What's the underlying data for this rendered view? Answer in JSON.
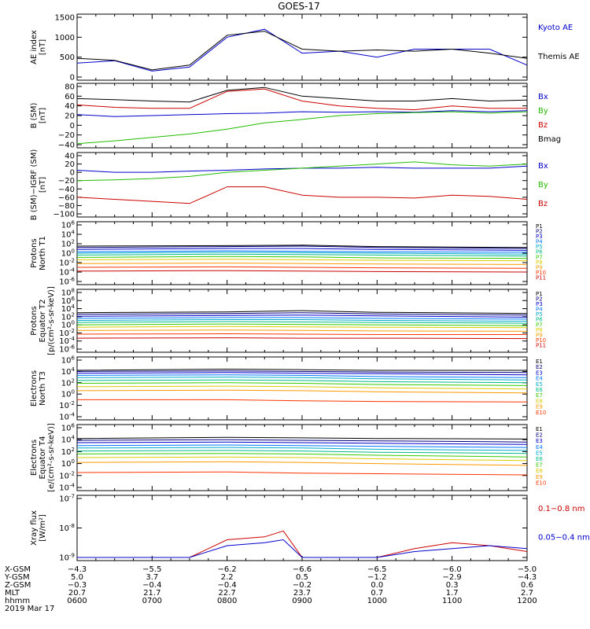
{
  "title": "GOES-17",
  "panels": [
    {
      "id": "ae",
      "ylabel_lines": [
        "AE index",
        "[nT]"
      ],
      "yticks": [
        "1500",
        "1000",
        "500",
        "0"
      ],
      "legend": [
        {
          "label": "Kyoto AE",
          "color": "#0000cc"
        },
        {
          "label": "Themis AE",
          "color": "#000000"
        }
      ]
    },
    {
      "id": "bsm",
      "ylabel_lines": [
        "B (SM)",
        "[nT]"
      ],
      "yticks": [
        "80",
        "60",
        "40",
        "20",
        "0",
        "−20",
        "−40"
      ],
      "legend": [
        {
          "label": "Bx",
          "color": "#0000cc"
        },
        {
          "label": "By",
          "color": "#22bb00"
        },
        {
          "label": "Bz",
          "color": "#cc0000"
        },
        {
          "label": "Bmag",
          "color": "#000000"
        }
      ]
    },
    {
      "id": "bigrf",
      "ylabel_lines": [
        "B (SM)−IGRF (SM)",
        "[nT]"
      ],
      "yticks": [
        "40",
        "20",
        "0",
        "−20",
        "−40",
        "−60",
        "−80",
        "−100"
      ],
      "legend": [
        {
          "label": "Bx",
          "color": "#0000cc"
        },
        {
          "label": "By",
          "color": "#22bb00"
        },
        {
          "label": "Bz",
          "color": "#cc0000"
        }
      ]
    },
    {
      "id": "pn",
      "ylabel_lines": [
        "Protons",
        "North T1"
      ],
      "yticks": [
        "10^6",
        "10^4",
        "10^2",
        "10^0",
        "10^-2",
        "10^-4",
        "10^-6"
      ],
      "legend_small": [
        "P1",
        "P2",
        "P3",
        "P4",
        "P5",
        "P6",
        "P7",
        "P8",
        "P9",
        "P10",
        "P11"
      ]
    },
    {
      "id": "pe",
      "ylabel_lines": [
        "Protons",
        "Equator T2",
        "[p/(cm²-s-sr-keV)]"
      ],
      "yticks": [
        "10^8",
        "10^6",
        "10^4",
        "10^2",
        "10^0",
        "10^-2",
        "10^-4",
        "10^-6"
      ],
      "legend_small": [
        "P1",
        "P2",
        "P3",
        "P4",
        "P5",
        "P6",
        "P7",
        "P8",
        "P9",
        "P10",
        "P11"
      ]
    },
    {
      "id": "en",
      "ylabel_lines": [
        "Electrons",
        "North T3"
      ],
      "yticks": [
        "10^6",
        "10^4",
        "10^2",
        "10^0",
        "10^-2",
        "10^-4"
      ],
      "legend_small": [
        "E1",
        "E2",
        "E3",
        "E4",
        "E5",
        "E6",
        "E7",
        "E8",
        "E9",
        "E10"
      ]
    },
    {
      "id": "ee",
      "ylabel_lines": [
        "Electrons",
        "Equator T4",
        "[e/(cm²-s-sr-keV)]"
      ],
      "yticks": [
        "10^6",
        "10^4",
        "10^2",
        "10^0",
        "10^-2",
        "10^-4"
      ],
      "legend_small": [
        "E1",
        "E2",
        "E3",
        "E4",
        "E5",
        "E6",
        "E7",
        "E8",
        "E9",
        "E10"
      ]
    },
    {
      "id": "xray",
      "ylabel_lines": [
        "Xray flux",
        "[W/m²]"
      ],
      "yticks": [
        "10^-7",
        "10^-8",
        "10^-9"
      ],
      "legend": [
        {
          "label": "0.1−0.8 nm",
          "color": "#cc0000"
        },
        {
          "label": "0.05−0.4 nm",
          "color": "#0000cc"
        }
      ]
    }
  ],
  "ephemeris": {
    "rows": [
      {
        "label": "X-GSM",
        "values": [
          "−4.3",
          "−5.5",
          "−6.2",
          "−6.6",
          "−6.5",
          "−6.0",
          "−5.0"
        ]
      },
      {
        "label": "Y-GSM",
        "values": [
          "5.0",
          "3.7",
          "2.2",
          "0.5",
          "−1.2",
          "−2.9",
          "−4.3"
        ]
      },
      {
        "label": "Z-GSM",
        "values": [
          "−0.3",
          "−0.4",
          "−0.4",
          "−0.2",
          "0.0",
          "0.3",
          "0.6"
        ]
      },
      {
        "label": "MLT",
        "values": [
          "20.7",
          "21.7",
          "22.7",
          "23.7",
          "0.7",
          "1.7",
          "2.7"
        ]
      },
      {
        "label": "hhmm",
        "values": [
          "0600",
          "0700",
          "0800",
          "0900",
          "1000",
          "1100",
          "1200"
        ]
      }
    ],
    "date": "2019 Mar 17"
  },
  "chart_data": [
    {
      "type": "line",
      "title": "GOES-17",
      "ylabel": "AE index [nT]",
      "ylim": [
        0,
        1500
      ],
      "x": [
        "0600",
        "0630",
        "0700",
        "0730",
        "0800",
        "0830",
        "0900",
        "0930",
        "1000",
        "1030",
        "1100",
        "1130",
        "1200"
      ],
      "series": [
        {
          "name": "Kyoto AE",
          "color": "#0000cc",
          "values": [
            350,
            410,
            150,
            250,
            1000,
            1200,
            600,
            650,
            500,
            700,
            700,
            700,
            300
          ]
        },
        {
          "name": "Themis AE",
          "color": "#000000",
          "values": [
            470,
            420,
            180,
            300,
            1050,
            1150,
            700,
            650,
            680,
            650,
            700,
            600,
            470
          ]
        }
      ]
    },
    {
      "type": "line",
      "ylabel": "B (SM) [nT]",
      "ylim": [
        -40,
        80
      ],
      "x": [
        "0600",
        "0630",
        "0700",
        "0730",
        "0800",
        "0830",
        "0900",
        "0930",
        "1000",
        "1030",
        "1100",
        "1130",
        "1200"
      ],
      "series": [
        {
          "name": "Bx",
          "color": "#0000cc",
          "values": [
            22,
            18,
            20,
            22,
            24,
            25,
            28,
            27,
            28,
            27,
            30,
            28,
            30
          ]
        },
        {
          "name": "By",
          "color": "#22bb00",
          "values": [
            -38,
            -32,
            -25,
            -18,
            -8,
            5,
            12,
            20,
            24,
            26,
            28,
            25,
            28
          ]
        },
        {
          "name": "Bz",
          "color": "#cc0000",
          "values": [
            42,
            37,
            35,
            35,
            70,
            75,
            50,
            40,
            35,
            32,
            40,
            35,
            35
          ]
        },
        {
          "name": "Bmag",
          "color": "#000000",
          "values": [
            55,
            53,
            50,
            48,
            72,
            78,
            60,
            55,
            50,
            50,
            55,
            50,
            52
          ]
        }
      ]
    },
    {
      "type": "line",
      "ylabel": "B (SM)−IGRF (SM) [nT]",
      "ylim": [
        -100,
        40
      ],
      "x": [
        "0600",
        "0630",
        "0700",
        "0730",
        "0800",
        "0830",
        "0900",
        "0930",
        "1000",
        "1030",
        "1100",
        "1130",
        "1200"
      ],
      "series": [
        {
          "name": "Bx",
          "color": "#0000cc",
          "values": [
            5,
            0,
            0,
            3,
            5,
            8,
            10,
            10,
            12,
            10,
            10,
            10,
            15
          ]
        },
        {
          "name": "By",
          "color": "#22bb00",
          "values": [
            -20,
            -18,
            -15,
            -10,
            0,
            5,
            10,
            15,
            20,
            25,
            18,
            15,
            20
          ]
        },
        {
          "name": "Bz",
          "color": "#cc0000",
          "values": [
            -60,
            -65,
            -70,
            -75,
            -35,
            -35,
            -55,
            -60,
            -60,
            -62,
            -55,
            -58,
            -65
          ]
        }
      ]
    },
    {
      "type": "line",
      "ylabel": "Protons North T1",
      "ylim": [
        "10^-6",
        "10^6"
      ],
      "x": [
        "0600",
        "0800",
        "0900",
        "1000",
        "1200"
      ],
      "series": [
        {
          "name": "P1",
          "values": [
            1.5,
            1.6,
            1.7,
            1.4,
            1.2
          ]
        },
        {
          "name": "P2",
          "values": [
            1.2,
            1.4,
            1.5,
            1.2,
            1.0
          ]
        },
        {
          "name": "P3",
          "values": [
            0.8,
            1.0,
            1.0,
            0.8,
            0.6
          ]
        },
        {
          "name": "P4",
          "values": [
            0.3,
            0.5,
            0.4,
            0.3,
            0.2
          ]
        },
        {
          "name": "P5",
          "values": [
            0.0,
            0.2,
            0.1,
            0.0,
            -0.2
          ]
        },
        {
          "name": "P6",
          "values": [
            -0.4,
            -0.2,
            -0.3,
            -0.4,
            -0.6
          ]
        },
        {
          "name": "P7",
          "values": [
            -0.9,
            -0.7,
            -0.8,
            -1.0,
            -1.1
          ]
        },
        {
          "name": "P8",
          "values": [
            -1.4,
            -1.3,
            -1.4,
            -1.5,
            -1.6
          ]
        },
        {
          "name": "P9",
          "values": [
            -2.2,
            -2.1,
            -2.2,
            -2.3,
            -2.4
          ]
        },
        {
          "name": "P10",
          "values": [
            -3.0,
            -2.9,
            -3.0,
            -3.1,
            -3.2
          ]
        },
        {
          "name": "P11",
          "values": [
            -3.8,
            -3.7,
            -3.8,
            -3.9,
            -4.0
          ]
        }
      ]
    },
    {
      "type": "line",
      "ylabel": "Protons Equator T2 [p/(cm²-s-sr-keV)]",
      "ylim": [
        "10^-6",
        "10^8"
      ],
      "x": [
        "0600",
        "0800",
        "0900",
        "1000",
        "1200"
      ],
      "series": [
        {
          "name": "P1",
          "values": [
            3.0,
            3.2,
            3.5,
            3.1,
            2.8
          ]
        },
        {
          "name": "P2",
          "values": [
            2.6,
            2.8,
            3.0,
            2.7,
            2.4
          ]
        },
        {
          "name": "P3",
          "values": [
            2.1,
            2.3,
            2.4,
            2.2,
            1.9
          ]
        },
        {
          "name": "P4",
          "values": [
            1.6,
            1.8,
            1.8,
            1.6,
            1.4
          ]
        },
        {
          "name": "P5",
          "values": [
            1.1,
            1.3,
            1.3,
            1.1,
            0.9
          ]
        },
        {
          "name": "P6",
          "values": [
            0.6,
            0.8,
            0.7,
            0.6,
            0.4
          ]
        },
        {
          "name": "P7",
          "values": [
            0.0,
            0.2,
            0.1,
            0.0,
            -0.2
          ]
        },
        {
          "name": "P8",
          "values": [
            -0.6,
            -0.4,
            -0.5,
            -0.6,
            -0.7
          ]
        },
        {
          "name": "P9",
          "values": [
            -1.4,
            -1.3,
            -1.4,
            -1.5,
            -1.6
          ]
        },
        {
          "name": "P10",
          "values": [
            -2.3,
            -2.2,
            -2.3,
            -2.4,
            -2.4
          ]
        },
        {
          "name": "P11",
          "values": [
            -3.3,
            -3.2,
            -3.3,
            -3.3,
            -3.4
          ]
        }
      ]
    },
    {
      "type": "line",
      "ylabel": "Electrons North T3",
      "ylim": [
        "10^-4",
        "10^6"
      ],
      "x": [
        "0600",
        "0800",
        "0900",
        "1000",
        "1200"
      ],
      "series": [
        {
          "name": "E1",
          "values": [
            4.2,
            4.4,
            4.3,
            4.2,
            4.2
          ]
        },
        {
          "name": "E2",
          "values": [
            4.0,
            4.1,
            4.0,
            3.9,
            3.8
          ]
        },
        {
          "name": "E3",
          "values": [
            3.7,
            3.8,
            3.7,
            3.6,
            3.4
          ]
        },
        {
          "name": "E4",
          "values": [
            3.3,
            3.4,
            3.3,
            3.1,
            2.9
          ]
        },
        {
          "name": "E5",
          "values": [
            2.9,
            3.0,
            2.9,
            2.7,
            2.5
          ]
        },
        {
          "name": "E6",
          "values": [
            2.4,
            2.5,
            2.4,
            2.2,
            2.0
          ]
        },
        {
          "name": "E7",
          "values": [
            1.9,
            2.0,
            1.9,
            1.7,
            1.5
          ]
        },
        {
          "name": "E8",
          "values": [
            1.3,
            1.4,
            1.3,
            1.1,
            0.9
          ]
        },
        {
          "name": "E9",
          "values": [
            0.6,
            0.7,
            0.6,
            0.4,
            0.2
          ]
        },
        {
          "name": "E10",
          "values": [
            -1.0,
            -1.0,
            -1.2,
            -1.3,
            -1.4
          ]
        }
      ]
    },
    {
      "type": "line",
      "ylabel": "Electrons Equator T4 [e/(cm²-s-sr-keV)]",
      "ylim": [
        "10^-4",
        "10^6"
      ],
      "x": [
        "0600",
        "0800",
        "0900",
        "1000",
        "1200"
      ],
      "series": [
        {
          "name": "E1",
          "values": [
            4.2,
            4.4,
            4.3,
            4.2,
            4.1
          ]
        },
        {
          "name": "E2",
          "values": [
            3.9,
            4.0,
            3.9,
            3.8,
            3.6
          ]
        },
        {
          "name": "E3",
          "values": [
            3.5,
            3.6,
            3.5,
            3.4,
            3.2
          ]
        },
        {
          "name": "E4",
          "values": [
            3.0,
            3.1,
            3.0,
            2.9,
            2.7
          ]
        },
        {
          "name": "E5",
          "values": [
            2.6,
            2.7,
            2.6,
            2.4,
            2.2
          ]
        },
        {
          "name": "E6",
          "values": [
            2.1,
            2.2,
            2.1,
            1.9,
            1.7
          ]
        },
        {
          "name": "E7",
          "values": [
            1.6,
            1.7,
            1.6,
            1.4,
            1.1
          ]
        },
        {
          "name": "E8",
          "values": [
            1.0,
            1.1,
            1.0,
            0.8,
            0.5
          ]
        },
        {
          "name": "E9",
          "values": [
            0.2,
            0.3,
            0.2,
            0.0,
            -0.3
          ]
        },
        {
          "name": "E10",
          "values": [
            -1.5,
            -1.4,
            -1.6,
            -1.7,
            -1.9
          ]
        }
      ]
    },
    {
      "type": "line",
      "ylabel": "Xray flux [W/m²]",
      "ylim": [
        "10^-9",
        "10^-7"
      ],
      "x": [
        "0600",
        "0730",
        "0800",
        "0830",
        "0845",
        "0900",
        "1000",
        "1030",
        "1100",
        "1130",
        "1200"
      ],
      "series": [
        {
          "name": "0.1−0.8 nm",
          "color": "#cc0000",
          "values": [
            -9.0,
            -9.0,
            -8.4,
            -8.3,
            -8.1,
            -9.0,
            -9.0,
            -8.7,
            -8.5,
            -8.6,
            -8.8
          ]
        },
        {
          "name": "0.05−0.4 nm",
          "color": "#0000cc",
          "values": [
            -9.0,
            -9.0,
            -8.6,
            -8.5,
            -8.4,
            -9.0,
            -9.0,
            -8.8,
            -8.7,
            -8.6,
            -8.7
          ]
        }
      ]
    }
  ]
}
